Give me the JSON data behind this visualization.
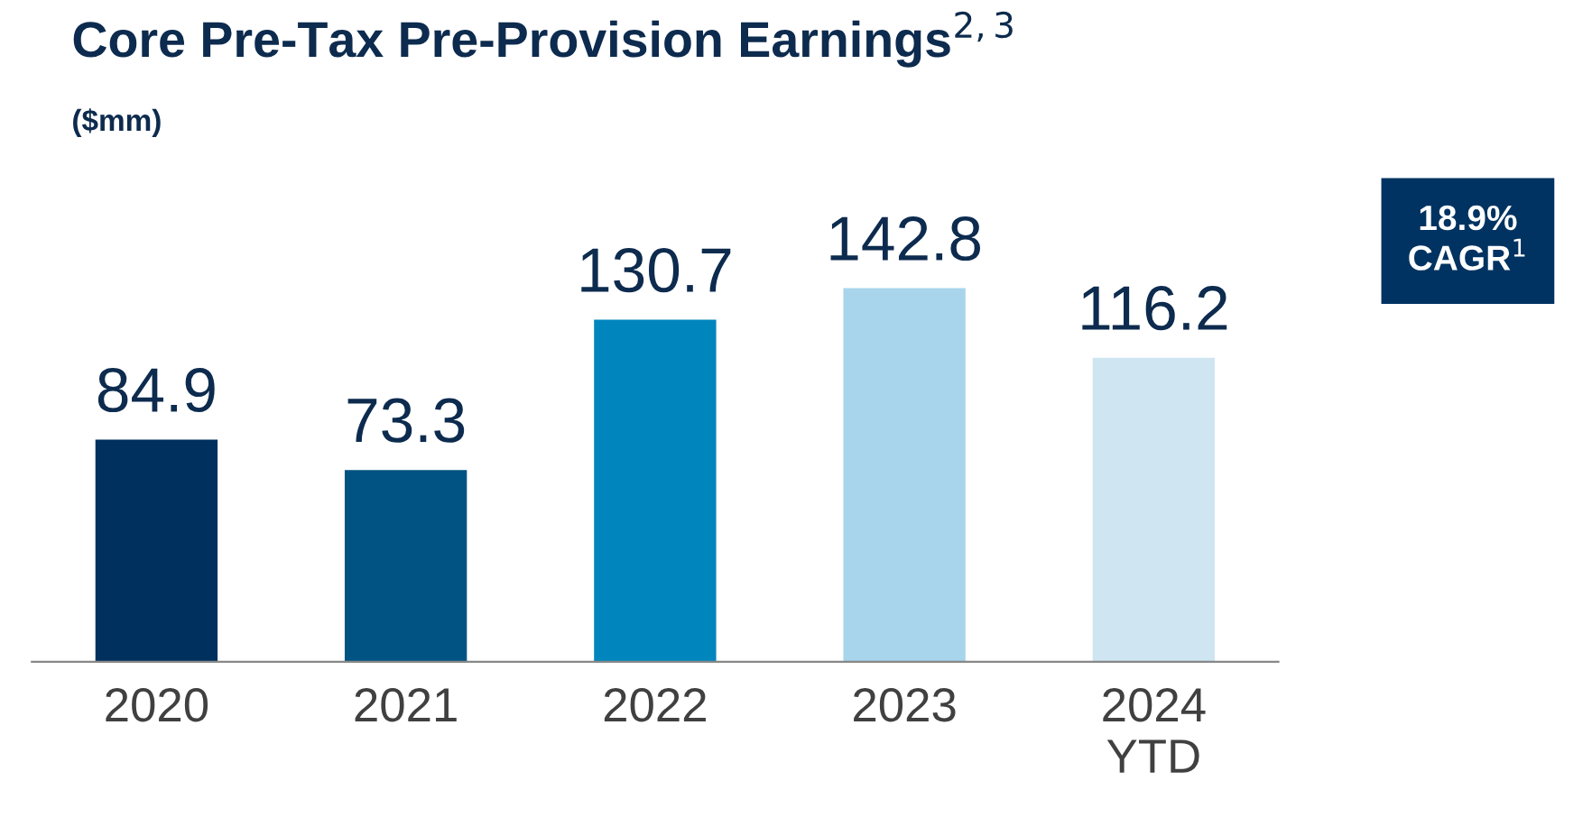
{
  "chart_data": {
    "type": "bar",
    "title": "Core Pre-Tax Pre-Provision Earnings$^{2,3}$",
    "subtitle": "($mm)",
    "categories": [
      "2020",
      "2021",
      "2022",
      "2023",
      "2024\nYTD"
    ],
    "values": [
      84.9,
      73.3,
      130.7,
      142.8,
      116.2
    ],
    "colors": [
      "#00305e",
      "#005382",
      "#0085bd",
      "#a8d5ec",
      "#cfe5f2"
    ],
    "data_labels": true,
    "grid": false,
    "legend": false,
    "annotations": [
      "18.9%\nCAGR$^{1}$"
    ]
  }
}
